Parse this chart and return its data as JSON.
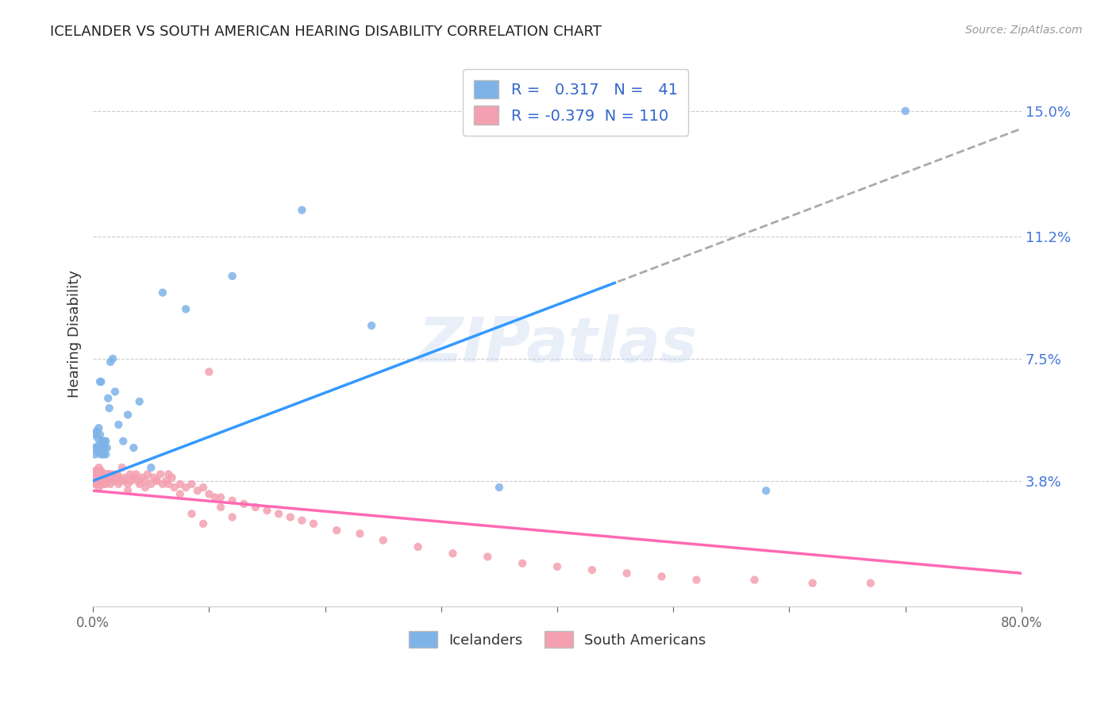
{
  "title": "ICELANDER VS SOUTH AMERICAN HEARING DISABILITY CORRELATION CHART",
  "source": "Source: ZipAtlas.com",
  "ylabel": "Hearing Disability",
  "watermark": "ZIPatlas",
  "legend_label1": "Icelanders",
  "legend_label2": "South Americans",
  "r1": 0.317,
  "n1": 41,
  "r2": -0.379,
  "n2": 110,
  "color1": "#7EB3E8",
  "color2": "#F4A0B0",
  "trendline1_color": "#3399FF",
  "trendline2_color": "#FF69B4",
  "trendline1_dashed_color": "#AAAAAA",
  "xmin": 0.0,
  "xmax": 0.8,
  "ymin": 0.0,
  "ymax": 0.165,
  "yticks": [
    0.038,
    0.075,
    0.112,
    0.15
  ],
  "ytick_labels": [
    "3.8%",
    "7.5%",
    "11.2%",
    "15.0%"
  ],
  "xtick_labels": [
    "0.0%",
    "",
    "",
    "",
    "",
    "",
    "",
    "",
    "80.0%"
  ],
  "background_color": "#FFFFFF",
  "grid_color": "#CCCCCC",
  "icelander_x": [
    0.001,
    0.002,
    0.002,
    0.003,
    0.003,
    0.004,
    0.004,
    0.005,
    0.005,
    0.006,
    0.006,
    0.007,
    0.007,
    0.008,
    0.008,
    0.009,
    0.009,
    0.01,
    0.01,
    0.011,
    0.011,
    0.012,
    0.013,
    0.014,
    0.015,
    0.017,
    0.019,
    0.022,
    0.026,
    0.03,
    0.035,
    0.04,
    0.05,
    0.06,
    0.08,
    0.12,
    0.18,
    0.24,
    0.35,
    0.58,
    0.7
  ],
  "icelander_y": [
    0.048,
    0.052,
    0.046,
    0.053,
    0.048,
    0.051,
    0.047,
    0.054,
    0.049,
    0.052,
    0.068,
    0.068,
    0.046,
    0.05,
    0.048,
    0.05,
    0.046,
    0.05,
    0.048,
    0.05,
    0.046,
    0.048,
    0.063,
    0.06,
    0.074,
    0.075,
    0.065,
    0.055,
    0.05,
    0.058,
    0.048,
    0.062,
    0.042,
    0.095,
    0.09,
    0.1,
    0.12,
    0.085,
    0.036,
    0.035,
    0.15
  ],
  "south_american_x": [
    0.001,
    0.001,
    0.002,
    0.002,
    0.002,
    0.003,
    0.003,
    0.003,
    0.003,
    0.004,
    0.004,
    0.004,
    0.004,
    0.005,
    0.005,
    0.005,
    0.005,
    0.006,
    0.006,
    0.006,
    0.006,
    0.007,
    0.007,
    0.007,
    0.007,
    0.008,
    0.008,
    0.009,
    0.009,
    0.01,
    0.01,
    0.011,
    0.011,
    0.012,
    0.013,
    0.013,
    0.014,
    0.015,
    0.016,
    0.017,
    0.018,
    0.019,
    0.02,
    0.021,
    0.022,
    0.023,
    0.024,
    0.025,
    0.027,
    0.028,
    0.03,
    0.032,
    0.033,
    0.035,
    0.037,
    0.039,
    0.04,
    0.042,
    0.045,
    0.047,
    0.05,
    0.052,
    0.055,
    0.058,
    0.06,
    0.063,
    0.065,
    0.068,
    0.07,
    0.075,
    0.08,
    0.085,
    0.09,
    0.095,
    0.1,
    0.105,
    0.11,
    0.12,
    0.13,
    0.14,
    0.15,
    0.16,
    0.17,
    0.18,
    0.19,
    0.21,
    0.23,
    0.25,
    0.28,
    0.31,
    0.34,
    0.37,
    0.4,
    0.43,
    0.46,
    0.49,
    0.52,
    0.57,
    0.62,
    0.67,
    0.03,
    0.045,
    0.055,
    0.065,
    0.075,
    0.085,
    0.095,
    0.1,
    0.11,
    0.12
  ],
  "south_american_y": [
    0.04,
    0.038,
    0.041,
    0.037,
    0.04,
    0.039,
    0.038,
    0.041,
    0.037,
    0.04,
    0.038,
    0.041,
    0.037,
    0.04,
    0.038,
    0.042,
    0.036,
    0.04,
    0.038,
    0.041,
    0.037,
    0.04,
    0.038,
    0.041,
    0.037,
    0.04,
    0.038,
    0.04,
    0.037,
    0.04,
    0.038,
    0.04,
    0.037,
    0.039,
    0.04,
    0.038,
    0.04,
    0.037,
    0.039,
    0.04,
    0.038,
    0.039,
    0.038,
    0.04,
    0.037,
    0.039,
    0.038,
    0.042,
    0.038,
    0.039,
    0.037,
    0.04,
    0.038,
    0.039,
    0.04,
    0.038,
    0.037,
    0.039,
    0.038,
    0.04,
    0.037,
    0.039,
    0.038,
    0.04,
    0.037,
    0.038,
    0.037,
    0.039,
    0.036,
    0.037,
    0.036,
    0.037,
    0.035,
    0.036,
    0.034,
    0.033,
    0.033,
    0.032,
    0.031,
    0.03,
    0.029,
    0.028,
    0.027,
    0.026,
    0.025,
    0.023,
    0.022,
    0.02,
    0.018,
    0.016,
    0.015,
    0.013,
    0.012,
    0.011,
    0.01,
    0.009,
    0.008,
    0.008,
    0.007,
    0.007,
    0.035,
    0.036,
    0.038,
    0.04,
    0.034,
    0.028,
    0.025,
    0.071,
    0.03,
    0.027
  ]
}
